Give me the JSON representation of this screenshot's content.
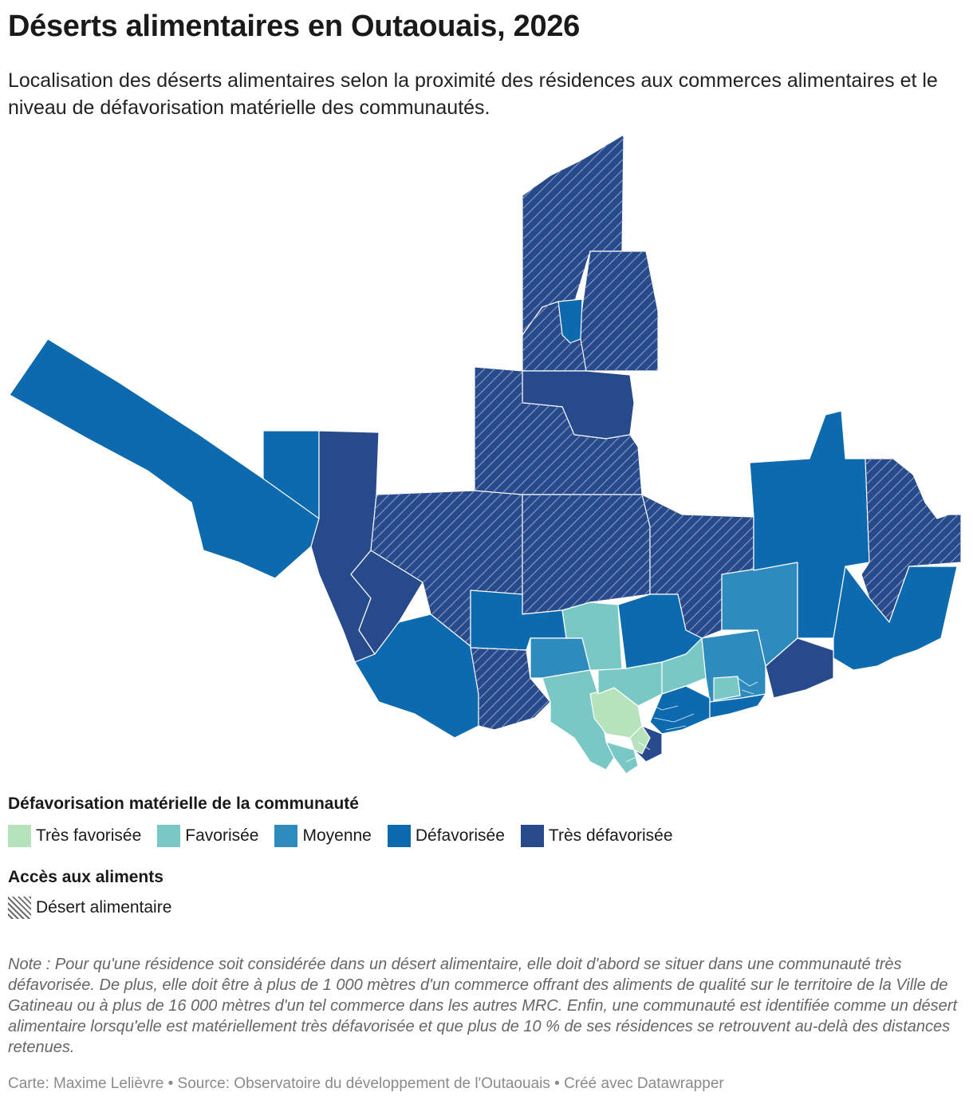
{
  "title": "Déserts alimentaires en Outaouais, 2026",
  "subtitle": "Localisation des déserts alimentaires selon la proximité des résidences aux commerces alimentaires et le niveau de défavorisation matérielle des communautés.",
  "colors": {
    "tres_favorisee": "#b7e3bc",
    "favorisee": "#79c8c6",
    "moyenne": "#2d8bbe",
    "defavorisee": "#0e6aae",
    "tres_defavorisee": "#264a8c",
    "hatch": "#8e9bbf"
  },
  "legend": {
    "deprivation_title": "Défavorisation matérielle de la communauté",
    "deprivation_items": [
      {
        "label": "Très favorisée",
        "color": "#b7e3bc"
      },
      {
        "label": "Favorisée",
        "color": "#79c8c6"
      },
      {
        "label": "Moyenne",
        "color": "#2d8bbe"
      },
      {
        "label": "Défavorisée",
        "color": "#0e6aae"
      },
      {
        "label": "Très défavorisée",
        "color": "#264a8c"
      }
    ],
    "access_title": "Accès aux aliments",
    "access_item": "Désert alimentaire"
  },
  "note": "Note : Pour qu'une résidence soit considérée dans un désert alimentaire, elle doit d'abord se situer dans une communauté très défavorisée. De plus, elle doit être à plus de 1 000 mètres d'un commerce offrant des aliments de qualité sur le territoire de la Ville de Gatineau ou à plus de 16 000 mètres d'un tel commerce dans les autres MRC. Enfin, une communauté est identifiée comme un désert alimentaire lorsqu'elle est matériellement très défavorisée et que plus de 10 % de ses résidences se retrouvent au-delà des distances retenues.",
  "footer": "Carte: Maxime Lelièvre • Source: Observatoire du développement de l'Outaouais • Créé avec Datawrapper"
}
